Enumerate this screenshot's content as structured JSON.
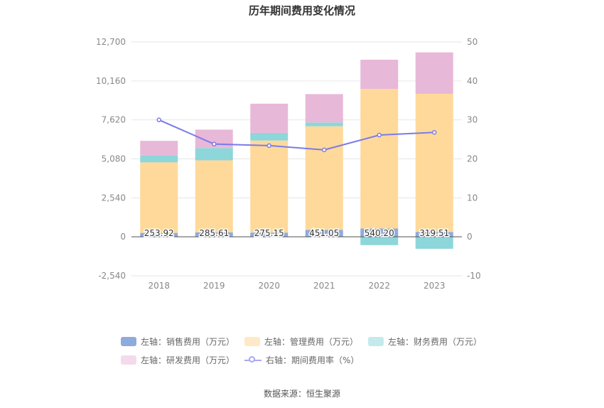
{
  "chart_data": {
    "type": "bar",
    "title": "历年期间费用变化情况",
    "categories": [
      "2018",
      "2019",
      "2020",
      "2021",
      "2022",
      "2023"
    ],
    "left_axis": {
      "ylim": [
        -2540,
        12700
      ],
      "ticks": [
        "12,700",
        "10,160",
        "7,620",
        "5,080",
        "2,540",
        "0",
        "-2,540"
      ],
      "tick_values": [
        12700,
        10160,
        7620,
        5080,
        2540,
        0,
        -2540
      ]
    },
    "right_axis": {
      "ylim": [
        -10,
        50
      ],
      "ticks": [
        "50",
        "40",
        "30",
        "20",
        "10",
        "0",
        "-10"
      ],
      "tick_values": [
        50,
        40,
        30,
        20,
        10,
        0,
        -10
      ]
    },
    "series": [
      {
        "name": "左轴：销售费用（万元）",
        "axis": "left",
        "kind": "bar",
        "color": "#8faadc",
        "values": [
          253.92,
          285.61,
          275.15,
          451.05,
          540.2,
          319.51
        ],
        "labels": [
          "253.92",
          "285.61",
          "275.15",
          "451.05",
          "540.20",
          "319.51"
        ]
      },
      {
        "name": "左轴：管理费用（万元）",
        "axis": "left",
        "kind": "bar",
        "color": "#ffd99a",
        "values": [
          4600,
          4700,
          6000,
          6750,
          9100,
          9000
        ]
      },
      {
        "name": "左轴：财务费用（万元）",
        "axis": "left",
        "kind": "bar",
        "color": "#8dd6da",
        "values": [
          450,
          800,
          500,
          250,
          -540,
          -780
        ]
      },
      {
        "name": "左轴：研发费用（万元）",
        "axis": "left",
        "kind": "bar",
        "color": "#e8b8d8",
        "values": [
          950,
          1200,
          1900,
          1850,
          1900,
          2700
        ]
      },
      {
        "name": "右轴：期间费用率（%）",
        "axis": "right",
        "kind": "line",
        "color": "#7b7be8",
        "values": [
          30.0,
          23.8,
          23.4,
          22.3,
          26.1,
          26.8
        ]
      }
    ],
    "legend_position": "bottom",
    "grid": true
  },
  "source": "数据来源：恒生聚源"
}
